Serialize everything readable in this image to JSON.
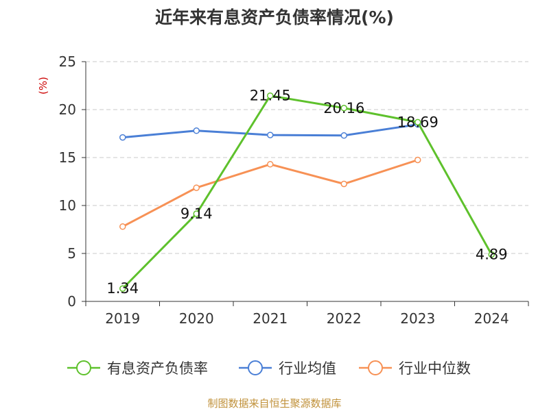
{
  "title": "近年来有息资产负债率情况(%)",
  "source": "制图数据来自恒生聚源数据库",
  "colors": {
    "series_0": "#5ec12c",
    "series_1": "#4a7fd6",
    "series_2": "#f79155",
    "axis": "#333333",
    "grid": "#c8c8c8",
    "unit": "#cc0000"
  },
  "chart_data": {
    "type": "line",
    "ylabel": "(%)",
    "ylim": [
      0,
      25
    ],
    "yticks": [
      0,
      5,
      10,
      15,
      20,
      25
    ],
    "grid": true,
    "legend_position": "bottom",
    "categories": [
      "2019",
      "2020",
      "2021",
      "2022",
      "2023",
      "2024"
    ],
    "series": [
      {
        "name": "有息资产负债率",
        "values": [
          1.34,
          9.14,
          21.45,
          20.16,
          18.69,
          4.89
        ],
        "data_labels": [
          "1.34",
          "9.14",
          "21.45",
          "20.16",
          "18.69",
          "4.89"
        ]
      },
      {
        "name": "行业均值",
        "values": [
          17.1,
          17.8,
          17.35,
          17.3,
          18.45,
          null
        ]
      },
      {
        "name": "行业中位数",
        "values": [
          7.8,
          11.85,
          14.3,
          12.25,
          14.75,
          null
        ]
      }
    ]
  }
}
